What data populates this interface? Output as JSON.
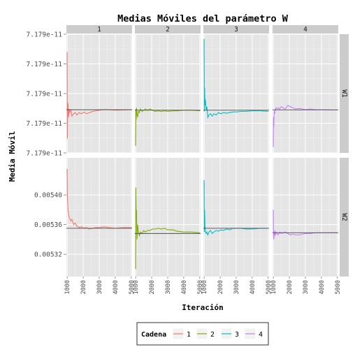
{
  "chart_data": {
    "type": "line",
    "title": "Medias Móviles del parámetro W",
    "xlabel": "Iteración",
    "ylabel": "Media Móvil",
    "x_ticks": [
      "1000",
      "2000",
      "3000",
      "4000",
      "5000"
    ],
    "xlim": [
      950,
      5050
    ],
    "columns": [
      "1",
      "2",
      "3",
      "4"
    ],
    "rows": [
      {
        "name": "W1",
        "ylim": [
          0,
          1
        ],
        "y_ticks": [
          {
            "value": 0.0,
            "label": "7.179e-11"
          },
          {
            "value": 0.25,
            "label": "7.179e-11"
          },
          {
            "value": 0.5,
            "label": "7.179e-11"
          },
          {
            "value": 0.75,
            "label": "7.179e-11"
          },
          {
            "value": 1.0,
            "label": "7.179e-11"
          }
        ],
        "panels": [
          {
            "chain": "1",
            "ref": 0.364,
            "x": [
              1000,
              1010,
              1030,
              1050,
              1080,
              1120,
              1170,
              1230,
              1300,
              1400,
              1500,
              1600,
              1750,
              1900,
              2050,
              2200,
              2400,
              2600,
              2800,
              3000,
              3300,
              3600,
              4000,
              4500,
              5000
            ],
            "y": [
              0.85,
              0.12,
              0.35,
              0.42,
              0.3,
              0.37,
              0.34,
              0.36,
              0.31,
              0.33,
              0.34,
              0.32,
              0.34,
              0.33,
              0.345,
              0.33,
              0.34,
              0.35,
              0.355,
              0.36,
              0.365,
              0.365,
              0.36,
              0.362,
              0.364
            ]
          },
          {
            "chain": "2",
            "ref": 0.36,
            "x": [
              1000,
              1010,
              1030,
              1050,
              1080,
              1120,
              1170,
              1230,
              1300,
              1400,
              1500,
              1600,
              1750,
              1900,
              2050,
              2200,
              2400,
              2600,
              2800,
              3000,
              3300,
              3600,
              4000,
              4500,
              5000
            ],
            "y": [
              0.06,
              0.37,
              0.28,
              0.38,
              0.33,
              0.3,
              0.35,
              0.34,
              0.37,
              0.35,
              0.36,
              0.37,
              0.36,
              0.37,
              0.36,
              0.35,
              0.355,
              0.35,
              0.355,
              0.35,
              0.355,
              0.355,
              0.36,
              0.36,
              0.355
            ]
          },
          {
            "chain": "3",
            "ref": 0.36,
            "x": [
              1000,
              1010,
              1030,
              1050,
              1080,
              1120,
              1170,
              1230,
              1300,
              1400,
              1500,
              1600,
              1750,
              1900,
              2050,
              2200,
              2400,
              2600,
              2800,
              3000,
              3300,
              3600,
              4000,
              4500,
              5000
            ],
            "y": [
              0.96,
              0.35,
              0.55,
              0.4,
              0.45,
              0.36,
              0.39,
              0.3,
              0.32,
              0.33,
              0.31,
              0.33,
              0.32,
              0.34,
              0.33,
              0.34,
              0.335,
              0.34,
              0.345,
              0.345,
              0.35,
              0.35,
              0.355,
              0.355,
              0.35
            ]
          },
          {
            "chain": "4",
            "ref": 0.363,
            "x": [
              1000,
              1010,
              1030,
              1050,
              1080,
              1120,
              1170,
              1230,
              1300,
              1400,
              1500,
              1600,
              1750,
              1900,
              2050,
              2200,
              2400,
              2600,
              2800,
              3000,
              3300,
              3600,
              4000,
              4500,
              5000
            ],
            "y": [
              0.05,
              0.3,
              0.22,
              0.35,
              0.33,
              0.37,
              0.38,
              0.37,
              0.38,
              0.37,
              0.39,
              0.38,
              0.37,
              0.4,
              0.39,
              0.38,
              0.37,
              0.375,
              0.37,
              0.365,
              0.37,
              0.365,
              0.365,
              0.363,
              0.363
            ]
          }
        ]
      },
      {
        "name": "W2",
        "ylim": [
          0.00529,
          0.00545
        ],
        "y_ticks": [
          {
            "value": 0.00532,
            "label": "0.00532"
          },
          {
            "value": 0.00536,
            "label": "0.00536"
          },
          {
            "value": 0.0054,
            "label": "0.00540"
          }
        ],
        "panels": [
          {
            "chain": "1",
            "ref": 0.005355,
            "x": [
              1000,
              1010,
              1030,
              1050,
              1080,
              1120,
              1170,
              1230,
              1300,
              1400,
              1500,
              1600,
              1750,
              1900,
              2050,
              2200,
              2400,
              2600,
              2800,
              3000,
              3300,
              3600,
              4000,
              4500,
              5000
            ],
            "y": [
              0.005435,
              0.0054,
              0.00539,
              0.00538,
              0.005375,
              0.00537,
              0.005368,
              0.005365,
              0.005367,
              0.00536,
              0.005362,
              0.005358,
              0.005356,
              0.005357,
              0.005355,
              0.005356,
              0.005354,
              0.005355,
              0.005356,
              0.005356,
              0.005357,
              0.005356,
              0.005355,
              0.005356,
              0.005356
            ]
          },
          {
            "chain": "2",
            "ref": 0.005348,
            "x": [
              1000,
              1010,
              1030,
              1050,
              1080,
              1120,
              1170,
              1230,
              1300,
              1400,
              1500,
              1600,
              1750,
              1900,
              2050,
              2200,
              2400,
              2600,
              2800,
              3000,
              3300,
              3600,
              4000,
              4500,
              5000
            ],
            "y": [
              0.0053,
              0.00541,
              0.00537,
              0.00538,
              0.00534,
              0.00536,
              0.00535,
              0.005345,
              0.00535,
              0.005348,
              0.005352,
              0.00535,
              0.005352,
              0.005352,
              0.005354,
              0.005354,
              0.005355,
              0.005354,
              0.005355,
              0.005353,
              0.005353,
              0.005351,
              0.00535,
              0.00535,
              0.005349
            ]
          },
          {
            "chain": "3",
            "ref": 0.005355,
            "x": [
              1000,
              1010,
              1030,
              1050,
              1080,
              1120,
              1170,
              1230,
              1300,
              1400,
              1500,
              1600,
              1750,
              1900,
              2050,
              2200,
              2400,
              2600,
              2800,
              3000,
              3300,
              3600,
              4000,
              4500,
              5000
            ],
            "y": [
              0.00542,
              0.00535,
              0.00538,
              0.00536,
              0.00535,
              0.005348,
              0.00535,
              0.005346,
              0.00535,
              0.005352,
              0.005348,
              0.00535,
              0.005352,
              0.005351,
              0.005353,
              0.005352,
              0.005354,
              0.005353,
              0.005355,
              0.005355,
              0.005355,
              0.005354,
              0.005354,
              0.005355,
              0.005355
            ]
          },
          {
            "chain": "4",
            "ref": 0.005349,
            "x": [
              1000,
              1010,
              1030,
              1050,
              1080,
              1120,
              1170,
              1230,
              1300,
              1400,
              1500,
              1600,
              1750,
              1900,
              2050,
              2200,
              2400,
              2600,
              2800,
              3000,
              3300,
              3600,
              4000,
              4500,
              5000
            ],
            "y": [
              0.00538,
              0.00535,
              0.00534,
              0.005345,
              0.005352,
              0.005345,
              0.00535,
              0.005348,
              0.005346,
              0.00535,
              0.005348,
              0.005349,
              0.00535,
              0.005348,
              0.005346,
              0.005347,
              0.005346,
              0.005346,
              0.005347,
              0.005348,
              0.005348,
              0.005349,
              0.005349,
              0.005349,
              0.005349
            ]
          }
        ]
      }
    ],
    "legend": {
      "title": "Cadena",
      "position": "bottom",
      "items": [
        {
          "label": "1",
          "color": "#F8766D"
        },
        {
          "label": "2",
          "color": "#7CAE00"
        },
        {
          "label": "3",
          "color": "#00BFC4"
        },
        {
          "label": "4",
          "color": "#C77CFF"
        }
      ]
    },
    "reference_line_color": "#4d4d4d",
    "panel_background": "#E5E5E5",
    "strip_background": "#CCCCCC",
    "grid": true
  }
}
